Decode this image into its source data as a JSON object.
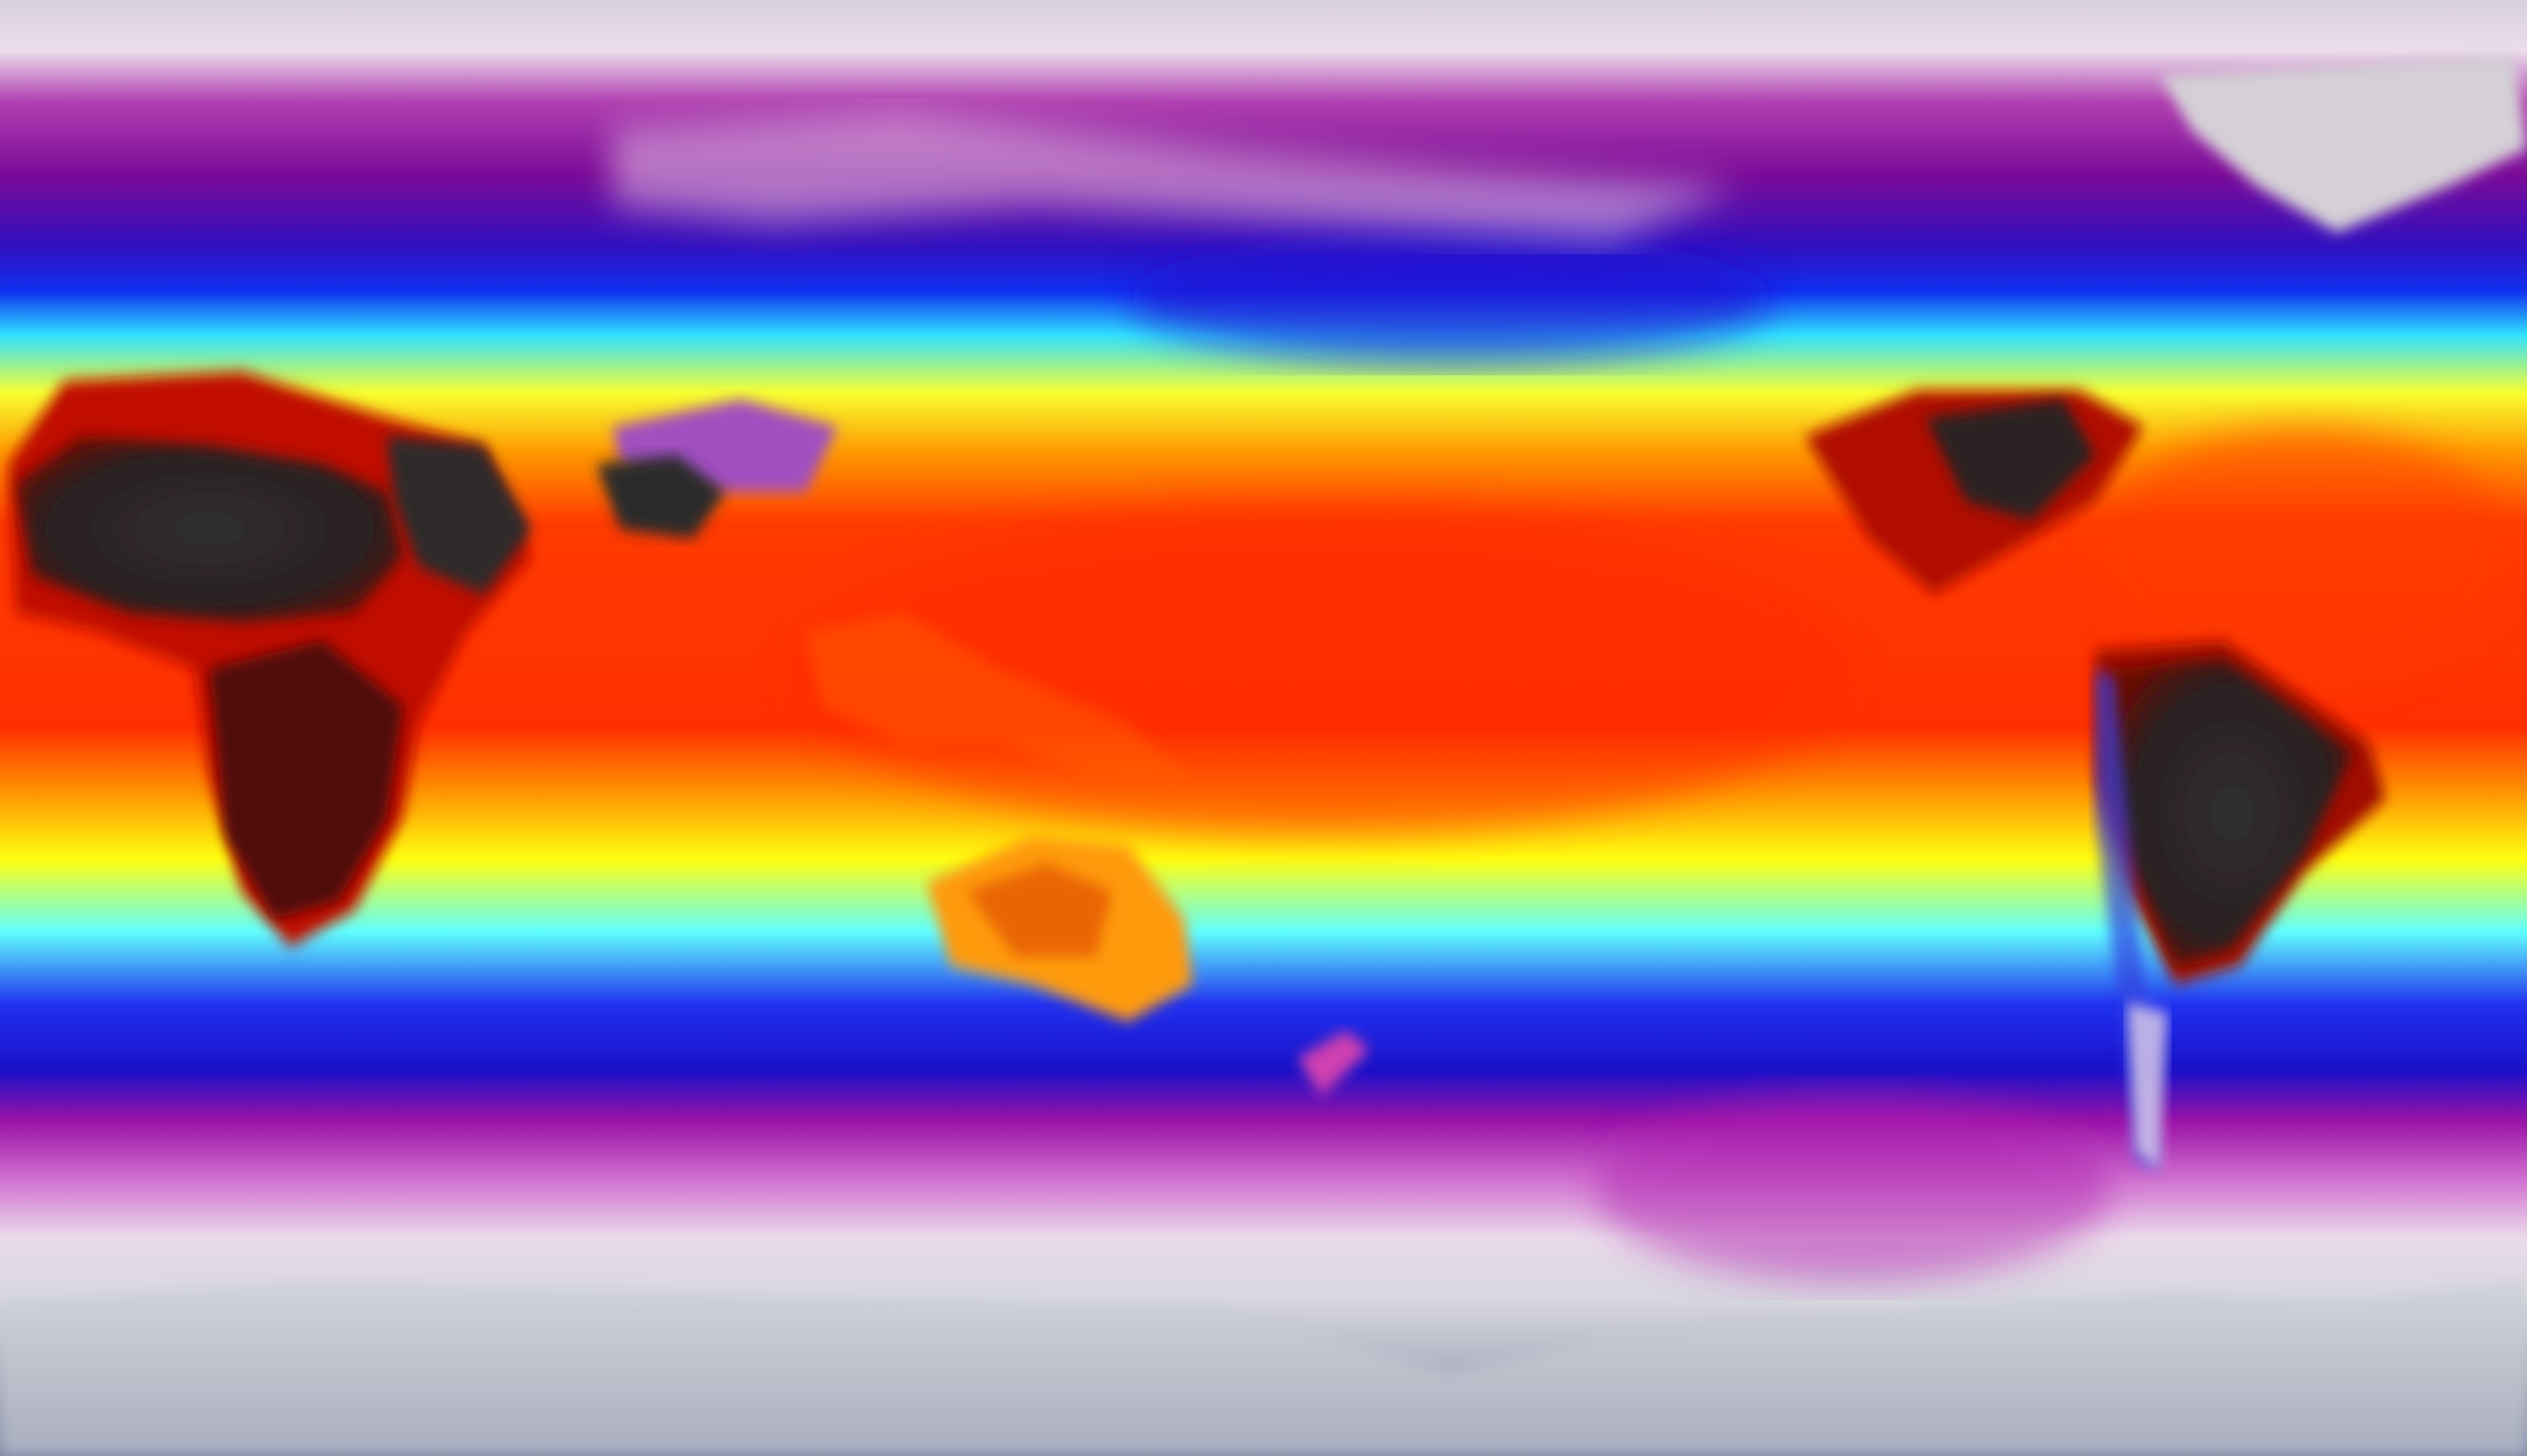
{
  "map": {
    "projection": "equirectangular",
    "variable_palette": [
      "#7880a0",
      "#d8d8e0",
      "#e8d0e8",
      "#9a1a9a",
      "#2020e0",
      "#20e0ff",
      "#ffff20",
      "#ff9000",
      "#ff3000",
      "#2a2a2a"
    ],
    "colors": {
      "polar": "#d8d0dc",
      "cold": "#9a1a9a",
      "cool": "#2020e0",
      "mild": "#20e0ff",
      "warm": "#ffff20",
      "hot": "#ff3000",
      "hottest_land": "#2a2a2a",
      "antarctic_ice": "#a8acbc"
    }
  }
}
